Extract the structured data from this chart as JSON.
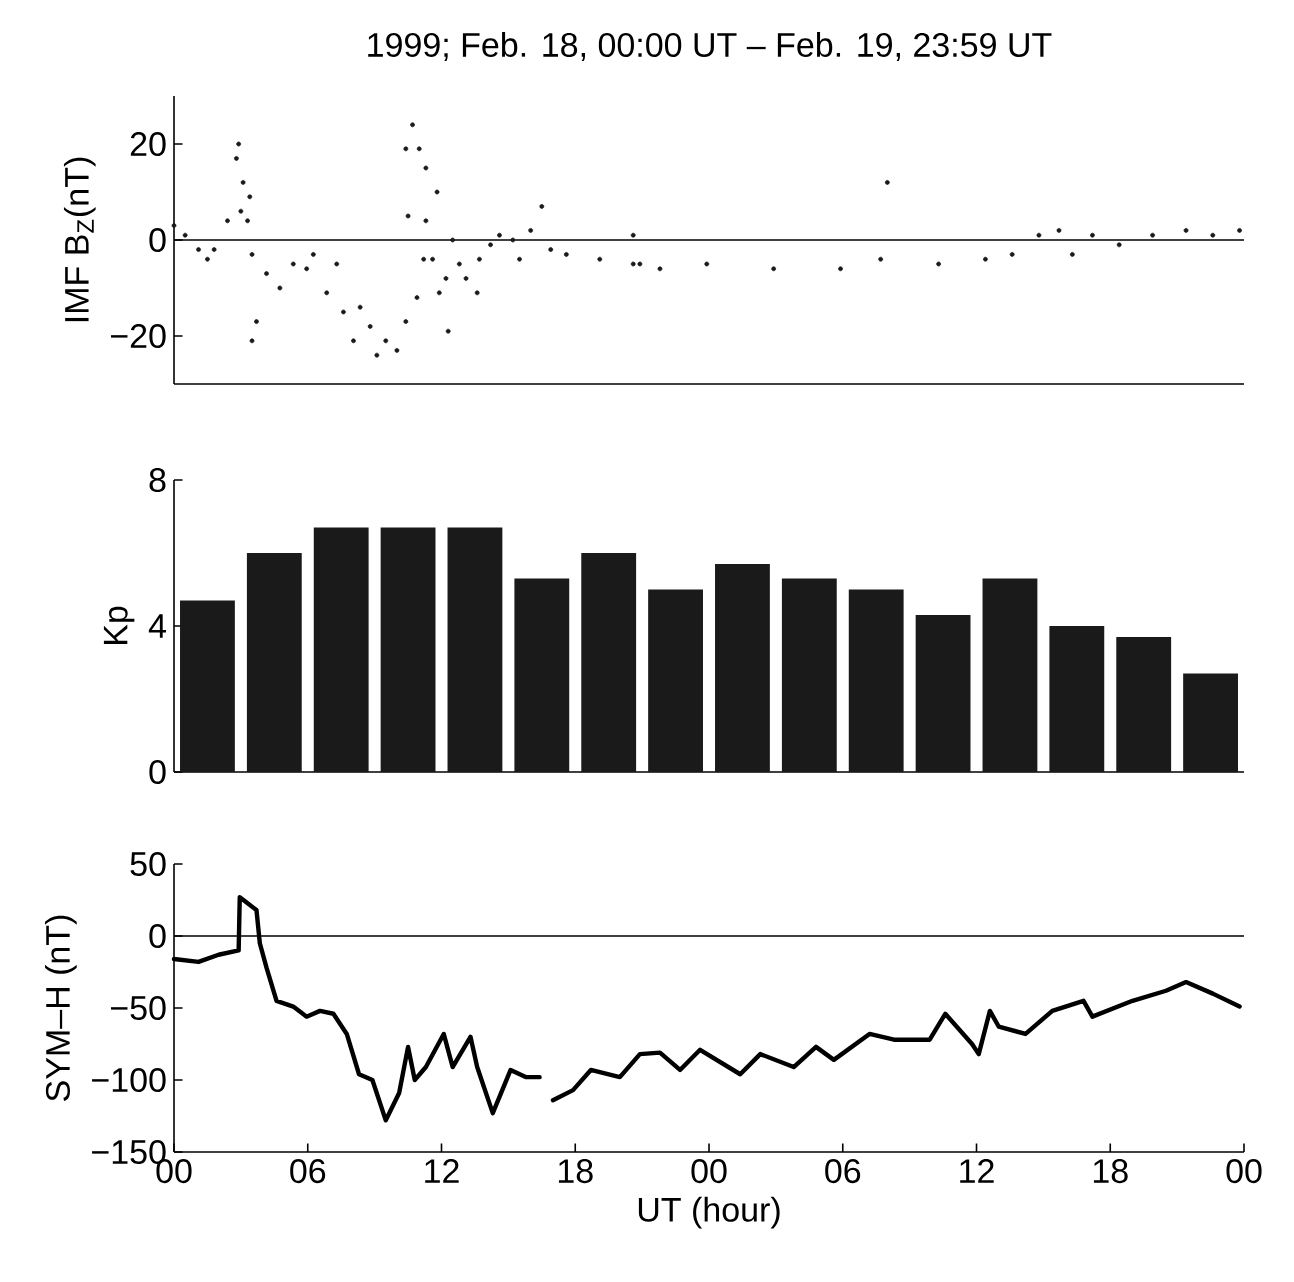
{
  "chart_data": [
    {
      "type": "scatter",
      "title": "1999;  Feb. 18, 00:00 UT – Feb. 19, 23:59 UT",
      "ylabel": "IMF B$_{Z}$(nT)",
      "xlim": [
        0,
        48
      ],
      "ylim": [
        -30,
        30
      ],
      "yticks": [
        {
          "value": -20,
          "label": "−20"
        },
        0,
        20
      ],
      "tick_labels": "y",
      "marker": "circle",
      "ref_lines": [
        {
          "axis": "y",
          "value": 0,
          "color": "#000000"
        }
      ],
      "series": [
        {
          "color": "#1a1a1a",
          "x": [
            0,
            0.5,
            1.1,
            1.5,
            1.8,
            2.4,
            2.8,
            2.9,
            3.0,
            3.1,
            3.3,
            3.4,
            3.5,
            3.5,
            3.7,
            4.15,
            4.75,
            5.35,
            5.95,
            6.25,
            6.85,
            7.3,
            7.6,
            8.05,
            8.35,
            8.8,
            9.1,
            9.5,
            10.0,
            10.4,
            10.4,
            10.5,
            10.7,
            10.9,
            11.0,
            11.2,
            11.3,
            11.3,
            11.6,
            11.8,
            11.9,
            12.2,
            12.3,
            12.5,
            12.8,
            13.1,
            13.6,
            13.7,
            14.2,
            14.6,
            15.2,
            15.5,
            16.0,
            16.5,
            16.9,
            17.6,
            19.1,
            20.6,
            20.6,
            20.9,
            21.8,
            23.9,
            26.9,
            29.9,
            31.7,
            32.0,
            34.3,
            36.4,
            37.6,
            38.8,
            39.7,
            40.3,
            41.2,
            42.4,
            43.9,
            45.4,
            46.6,
            47.8
          ],
          "values": [
            3,
            1,
            -2,
            -4,
            -2,
            4,
            17,
            20,
            6,
            12,
            4,
            9,
            -3,
            -21,
            -17,
            -7,
            -10,
            -5,
            -6,
            -3,
            -11,
            -5,
            -15,
            -21,
            -14,
            -18,
            -24,
            -21,
            -23,
            -17,
            19,
            5,
            24,
            -12,
            19,
            -4,
            15,
            4,
            -4,
            10,
            -11,
            -8,
            -19,
            0,
            -5,
            -8,
            -11,
            -4,
            -1,
            1,
            0,
            -4,
            2,
            7,
            -2,
            -3,
            -4,
            1,
            -5,
            -5,
            -6,
            -5,
            -6,
            -6,
            -4,
            12,
            -5,
            -4,
            -3,
            1,
            2,
            -3,
            1,
            -1,
            1,
            2,
            1,
            2
          ]
        }
      ]
    },
    {
      "type": "bar",
      "ylabel": "Kp",
      "categories": [
        null,
        null,
        null,
        null,
        null,
        null,
        null,
        null,
        null,
        null,
        null,
        null,
        null,
        null,
        null,
        null
      ],
      "ylim": [
        0,
        8
      ],
      "yticks": [
        0,
        4,
        8
      ],
      "tick_labels": "y",
      "series": [
        {
          "color": "#1a1a1a",
          "values": [
            4.7,
            6,
            6.7,
            6.7,
            6.7,
            5.3,
            6,
            5,
            5.7,
            5.3,
            5,
            4.3,
            5.3,
            4,
            3.7,
            2.7
          ]
        }
      ]
    },
    {
      "type": "line",
      "ylabel": "SYM–H (nT)",
      "xlabel": "UT (hour)",
      "xlim": [
        0,
        48
      ],
      "ylim": [
        -150,
        50
      ],
      "xticks": [
        {
          "value": 0,
          "label": "00"
        },
        {
          "value": 6,
          "label": "06"
        },
        {
          "value": 12,
          "label": "12"
        },
        {
          "value": 18,
          "label": "18"
        },
        {
          "value": 24,
          "label": "00"
        },
        {
          "value": 30,
          "label": "06"
        },
        {
          "value": 36,
          "label": "12"
        },
        {
          "value": 42,
          "label": "18"
        },
        {
          "value": 48,
          "label": "00"
        }
      ],
      "yticks": [
        {
          "value": -150,
          "label": "−150"
        },
        {
          "value": -100,
          "label": "−100"
        },
        {
          "value": -50,
          "label": "−50"
        },
        0,
        50
      ],
      "marker": "none",
      "ref_lines": [
        {
          "axis": "y",
          "value": 0,
          "color": "#000000"
        }
      ],
      "series": [
        {
          "color": "#000000",
          "x": [
            0,
            1.1,
            2.0,
            2.9,
            2.95,
            3.2,
            3.7,
            3.85,
            4.15,
            4.6,
            5.35,
            5.95,
            6.55,
            7.15,
            7.75,
            8.3,
            8.9,
            9.5,
            10.1,
            10.5,
            10.8,
            11.3,
            12.1,
            12.5,
            13.3,
            13.6,
            14.3,
            15.1,
            15.8,
            16.4,
            16.7,
            17.0,
            17.9,
            18.7,
            20.0,
            20.9,
            21.8,
            22.7,
            23.6,
            25.4,
            26.3,
            27.8,
            28.8,
            29.6,
            31.2,
            32.3,
            33.9,
            34.6,
            35.8,
            36.1,
            36.6,
            37.0,
            38.2,
            39.4,
            40.8,
            41.2,
            43.0,
            44.5,
            45.4,
            46.6,
            47.8
          ],
          "values": [
            -16,
            -18,
            -13,
            -10,
            27,
            24,
            18,
            -5,
            -22,
            -45,
            -49,
            -56,
            -52,
            -54,
            -68,
            -96,
            -100,
            -128,
            -109,
            -77,
            -100,
            -91,
            -68,
            -91,
            -70,
            -91,
            -123,
            -93,
            -98,
            -98,
            null,
            -114,
            -107,
            -93,
            -98,
            -82,
            -81,
            -93,
            -79,
            -96,
            -82,
            -91,
            -77,
            -86,
            -68,
            -72,
            -72,
            -54,
            -75,
            -82,
            -52,
            -63,
            -68,
            -52,
            -45,
            -56,
            -45,
            -38,
            -32,
            -40,
            -49
          ]
        }
      ]
    }
  ]
}
